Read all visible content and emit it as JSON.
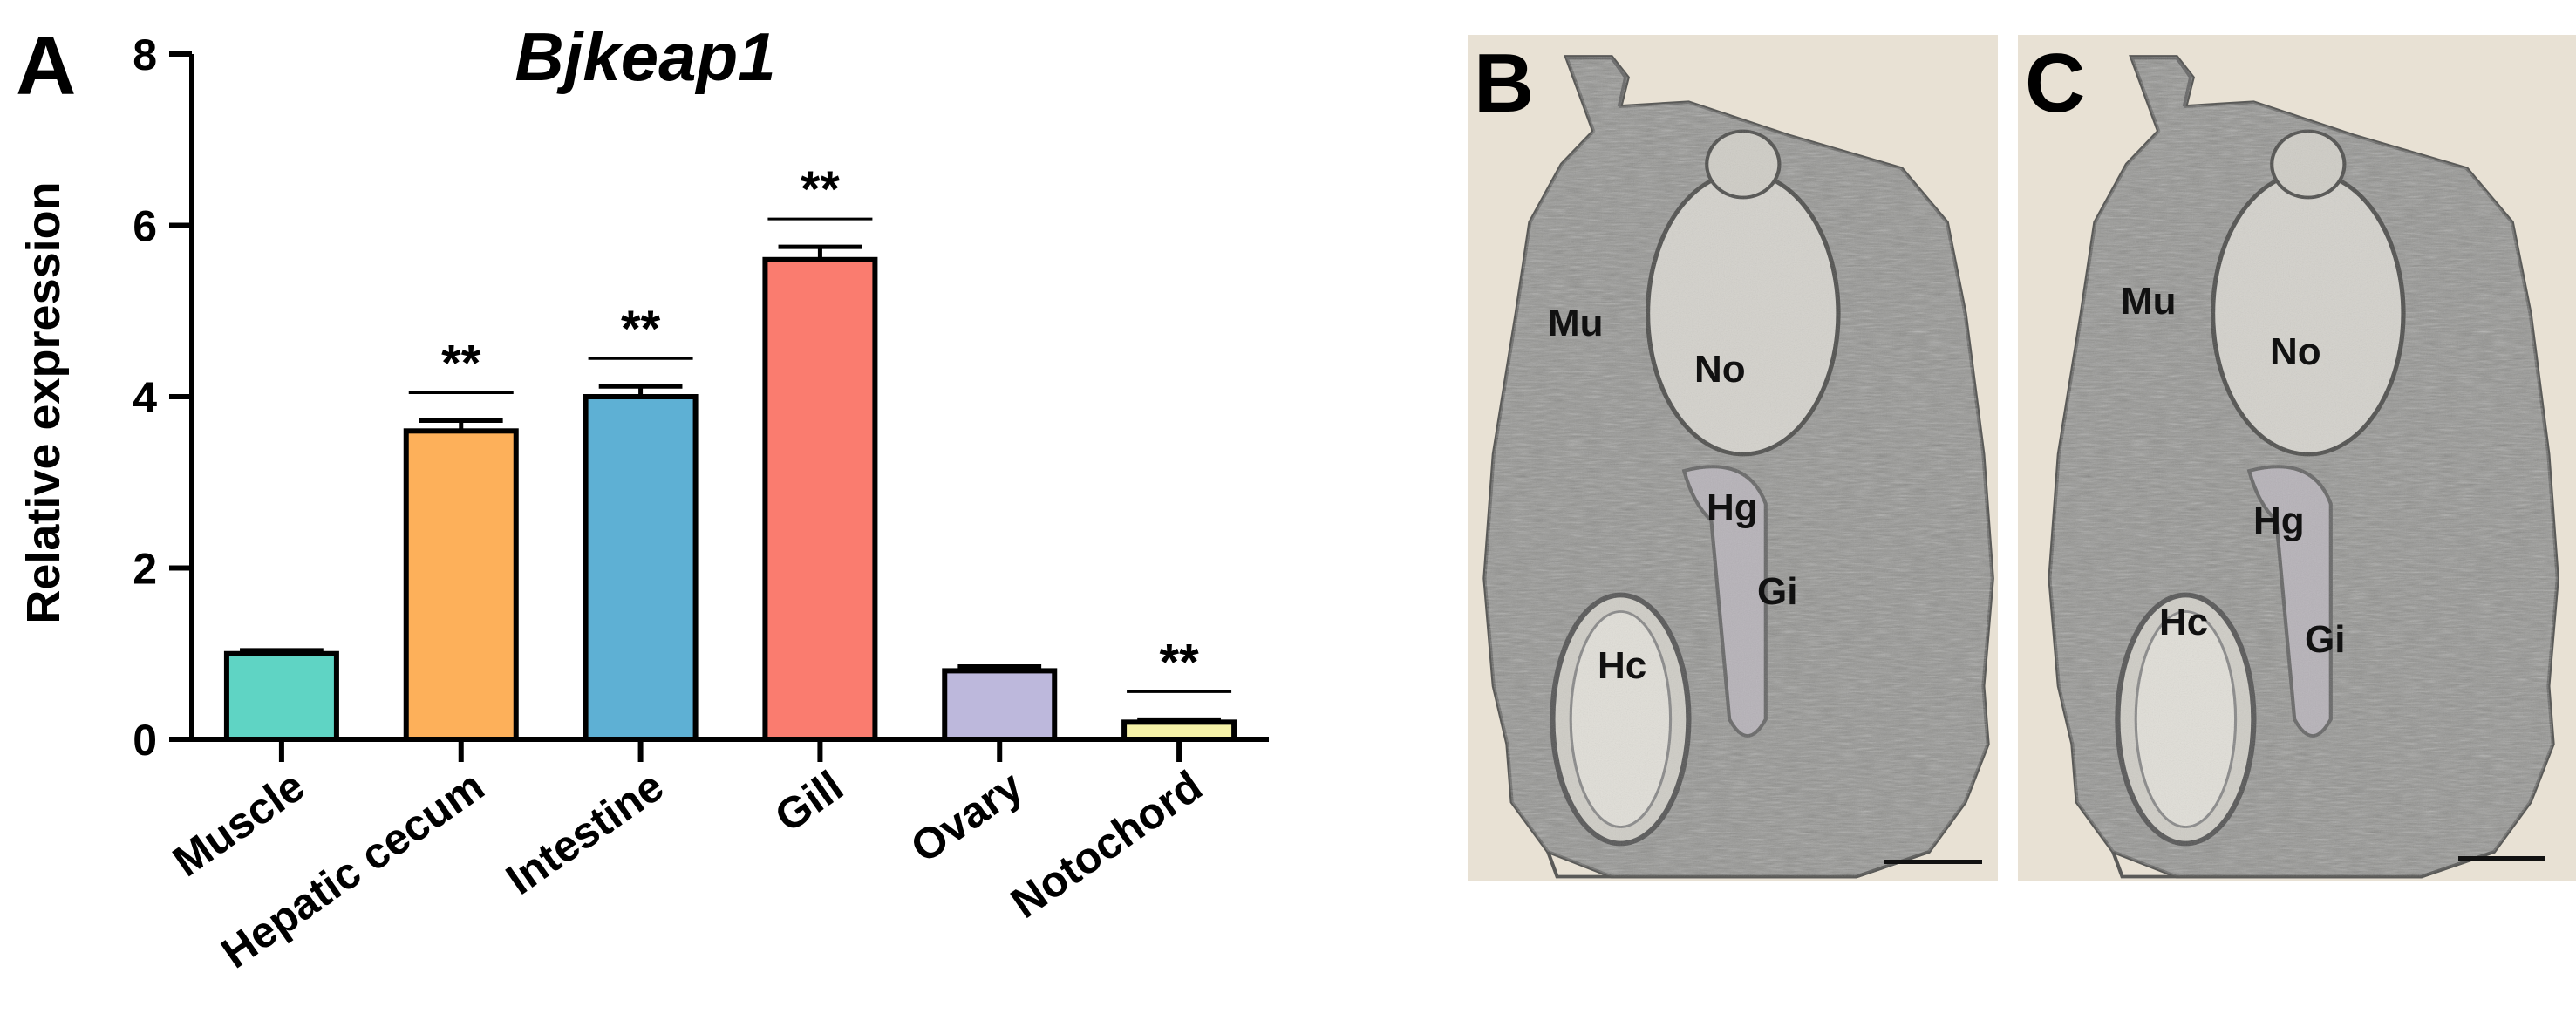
{
  "panels": {
    "a_letter": "A",
    "b_letter": "B",
    "c_letter": "C"
  },
  "chart_data": {
    "type": "bar",
    "title": "Bjkeap1",
    "xlabel": "",
    "ylabel": "Relative expression",
    "ylim": [
      0,
      8
    ],
    "yticks": [
      "0",
      "2",
      "4",
      "6",
      "8"
    ],
    "categories": [
      "Muscle",
      "Hepatic cecum",
      "Intestine",
      "Gill",
      "Ovary",
      "Notochord"
    ],
    "values": [
      1.0,
      3.6,
      4.0,
      5.6,
      0.8,
      0.2
    ],
    "errors": [
      0.04,
      0.12,
      0.12,
      0.15,
      0.05,
      0.03
    ],
    "significance": [
      "",
      "**",
      "**",
      "**",
      "",
      "**"
    ],
    "colors": [
      "#5fd4c4",
      "#fdb05a",
      "#5eb0d4",
      "#fa7c6f",
      "#bdb8dc",
      "#f6f2a8"
    ],
    "grid": false
  },
  "images": {
    "b_labels": {
      "mu": "Mu",
      "no": "No",
      "hg": "Hg",
      "gi": "Gi",
      "hc": "Hc"
    },
    "c_labels": {
      "mu": "Mu",
      "no": "No",
      "hg": "Hg",
      "gi": "Gi",
      "hc": "Hc"
    },
    "background_color": "#e8e1d4"
  }
}
